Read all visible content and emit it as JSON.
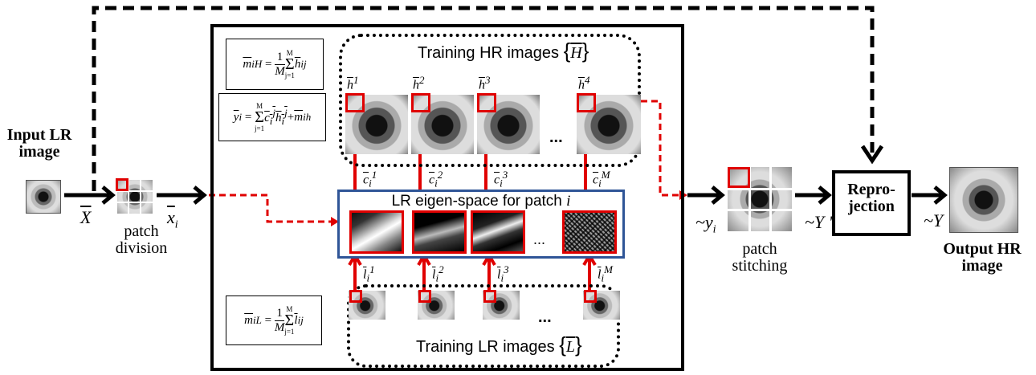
{
  "input": {
    "title": "Input LR image",
    "var": "X"
  },
  "division": {
    "label": "patch division",
    "var": "x",
    "sub": "i"
  },
  "training_hr": {
    "label": "Training HR images",
    "set": "H",
    "patch_labels": [
      "h",
      "h",
      "h",
      "h"
    ],
    "patch_sups": [
      "1",
      "2",
      "3",
      "4"
    ]
  },
  "training_lr": {
    "label": "Training LR images",
    "set": "L",
    "patch_labels": [
      "l",
      "l",
      "l",
      "l"
    ],
    "patch_sups": [
      "1",
      "2",
      "3",
      "M"
    ]
  },
  "eigen": {
    "label": "LR eigen-space for patch",
    "var": "i"
  },
  "coeffs": {
    "symbol": "c",
    "sub": "i",
    "sups": [
      "1",
      "2",
      "3",
      "M"
    ]
  },
  "ellipsis": "...",
  "formulas": {
    "mean_h": {
      "lhs": "m",
      "lhs_sup": "H",
      "lhs_sub": "i",
      "coef": "1",
      "den": "M",
      "sum_top": "M",
      "sum_bot": "j=1",
      "term": "h",
      "term_sup": "j",
      "term_sub": "i"
    },
    "recon": {
      "lhs": "y",
      "lhs_sub": "i",
      "sum_top": "M",
      "sum_bot": "j=1",
      "term": "c",
      "term_sup": "j",
      "term_sub": "i",
      "term2": "h",
      "term2_sup": "j",
      "term2_sub": "i",
      "plus": "+",
      "mean": "m",
      "mean_sup": "h",
      "mean_sub": "i"
    },
    "mean_l": {
      "lhs": "m",
      "lhs_sup": "L",
      "lhs_sub": "i",
      "coef": "1",
      "den": "M",
      "sum_top": "M",
      "sum_bot": "j=1",
      "term": "l",
      "term_sup": "j",
      "term_sub": "i"
    }
  },
  "stitch": {
    "label": "patch stitching",
    "var_in": "y",
    "var_in_sub": "i",
    "var_out": "Y '"
  },
  "reproj": {
    "label": "Repro- jection"
  },
  "output": {
    "title": "Output HR image",
    "var": "Y"
  },
  "colors": {
    "accent": "#e00000",
    "eigen_border": "#2f5597"
  }
}
